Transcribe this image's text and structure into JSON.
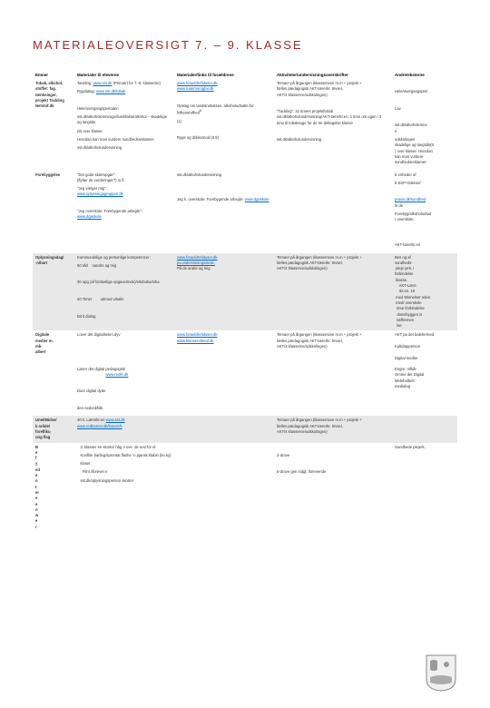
{
  "title": "MATERIALEOVERSIGT 7. – 9. KLASSE",
  "headers": [
    "Emner",
    "Materialer til eleverne",
    "Materialer/links til forældrene",
    "Aktiviteter/undervisningsoverskrifter",
    "Andre/eksterne"
  ],
  "rows": [
    {
      "bg": "white",
      "cells": [
        "Tobak, alkohol,<br>stoffer: fag.<br>tænkninger,<br>projekt Tackling<br>Netstof.dk",
        "<div>Tackling:&nbsp;<span class=link>www.sst.dk</span>&nbsp;(Primært for 7.-9. klasserne)</div><div>Rygdialog:&nbsp;<span class=link>www.sst.dk/tobak</span></div><div>&nbsp;</div><div>Hele/overgangsperioden</div><div>sst.dk/alkoholemneuge/hashfakta/alkohol – skadelige og langtids</div><div>(8) over klasse:</div><div>Hvordan kan man vurdere sundhedsreklamer:</div><div>sst.dk/alkoholundervisning</div>",
        "<div><span class=link>www.foraeldrefiduser.dk</span><br><span class=link>www.naarmorogfar.dk</span></div><div>&nbsp;</div><div>Opslag om landsindsatsen, alkoholudsatte for folkesundhed<sup>8</sup></div><div>(1)</div><div>&nbsp;</div><div>Ryge og drikkemod (8,9)</div>",
        "<div>Temaer på årgangen (klassemove m.m + projekt +<br>fælles pædagogisk AKT-lærerkr. trivsel,<br>AKT/4 klasserne/udskolingen)</div><div>&nbsp;</div><div>&quot;Tackling&quot;: 31 timers projektforløb<br>sst.dk/alkoholundervisning/AKT-lærerkr.en. 1 time om ugen i 3<br>time til tobaksuge for de tre deltagelse klasse</div><div>&nbsp;</div><div>sst.dk/alkoholundervisning</div>",
        "<div>&nbsp;</div><div>Hele/overgangsperi</div><div>&nbsp;</div><div>Lav</div><div>&nbsp;</div><div>sst.dk/alkoholemne<br>e</div><div>udskolingen<br>skadelige og langtids(8<br>) over klasse: Hvordan<br>kan man vurdere<br>sundhedsreklamer:</div>"
      ]
    },
    {
      "bg": "white",
      "cells": [
        "Forebyggelse",
        "<div>&quot;Det gode skæropgør&quot;<br>(flytter de vurderinger?) m.fl.</div><div>&quot;Jeg vælger mig&quot;<br><span class=link>www.oplysningsgruppen.dk</span></div><div>&nbsp;</div><div>&quot;Jeg overskole: Forebygende arbejde&quot;-<br><span class=link>www.dgaskole</span></div>",
        "<div>sst.dk/alkoholundervisning</div><div>&nbsp;</div><div>&nbsp;</div><div>Jeg k. overskole: Forebygende arbejde:&nbsp;<span class=link>www.dgaskole</span></div>",
        "",
        "<div>5 enheder af</div><div>8 SSP-Odense&quot;</div><div>&nbsp;</div><div><span class=link>praxis.dk/sundhed</span><br>le de</div><div>Forebyg/alkoholudsat<br>r overskole:</div><div>&nbsp;</div><div>&nbsp;</div><div>AKT-lærerkr.en</div>"
      ]
    },
    {
      "bg": "gray",
      "cells": [
        "Oplysningsdag/<br>-nihart",
        "<div>Kommundelige og personlige kompetencer:</div><div>50 råd&nbsp;&nbsp;&nbsp;&nbsp;oandre og mig</div><div>&nbsp;</div><div>30 opg (af forskellige opgaverinde)/elmboka/niha</div><div>&nbsp;</div><div>20 Timer &nbsp;&nbsp;&nbsp;&nbsp;&nbsp;&nbsp;&nbsp;udmod Ubalin</div><div>&nbsp;</div><div>Bit it dialog</div>",
        "<span class=link>www.foraeldrefiduser.dk</span><br><span class=link>pv.undervisningsskole.</span><br>På de andre og mig",
        "Temaer på årgangen (klassemove m.m + projekt +<br>fælles pædagogisk AKT-lærerkr. trivsel,<br>AKT/4 klasserne/udskolingen)",
        "Bes og af<br>sundheds-<br>&nbsp;pleje jerk. i<br>forbindelse<br>&nbsp;klasse.<br>&nbsp;&nbsp;&nbsp;&nbsp;AKT-Lære<br>&nbsp;&nbsp;&nbsp;&nbsp;rkr.en. 19<br>&nbsp;med Minnelser oden.<br>&nbsp;med/&nbsp;overskole<br>&nbsp;&nbsp;time iforbindelse<br>&nbsp;&nbsp;dosv/byggen is<br>&nbsp;&nbsp;læffermen<br>&nbsp;&nbsp;lse"
      ]
    },
    {
      "bg": "white",
      "cells": [
        "Digitale<br>medier m.<br>mb-<br>albert",
        "<div>Lover det digitaliteten.dyv</div><div>&nbsp;</div><div>&nbsp;</div><div>&nbsp;</div><div>Lærer det digital pedagogisk<br>&nbsp;&nbsp;&nbsp;&nbsp;&nbsp;&nbsp;&nbsp;&nbsp;&nbsp;&nbsp;&nbsp;&nbsp;&nbsp;&nbsp;&nbsp;&nbsp;&nbsp;&nbsp;&nbsp;&nbsp;&nbsp;&nbsp;&nbsp;&nbsp;&nbsp;&nbsp;&nbsp;<span class=link>www.redkr.dk</span></div><div>&nbsp;</div><div>Duer digital dyde</div><div>&nbsp;</div><div>den nedord/klik</div>",
        "<span class=link>www.foraeldrefiduser.dk</span><br><span class=link>www.kloosendmed.dk</span>",
        "Temaer på årgangen (klassemove m.m + projekt +<br>fælles pædagogisk AKT-lærerkr. trivsel,<br>AKT/4 klasserne/udskolingen)",
        "AKT pa det balefermed<br><br>Kultidøpperson<br><br>Digital medier<br><br>Engre, Vilkår<br>Omme det Digital<br>Metebolbeh<br>medialog"
      ]
    },
    {
      "bg": "gray",
      "cells": [
        "Unet/Midse/<br>k orlide/<br>forefliku<br>ung flag",
        "40 k. Lærerkr.en&nbsp;<span class=link>www.sst.dk</span><br><span class=link>www.redbarnet.dk/kraem/k</span>",
        "",
        "Temaer på årgangen (klassemove m.m + projekt +<br>fælles pædagogisk AKT-lærerkr. trivsel,<br>AKT/4 klasserne/udskolingen)",
        ""
      ]
    },
    {
      "bg": "white",
      "cells": [
        "B<br>e<br>f<br>y<br>ed<br>e<br>n<br>t<br>er<br>e<br>e<br>n<br>w<br>e<br>r",
        "<div>&nbsp;&nbsp;&nbsp;3. klasser en skorter håg 4 ove. de und for el</div><div>&nbsp;&nbsp;&nbsp;Konflite barling/sprontat flashe ½ pjansk&nbsp;klabin (kn.ky)</div><div>&nbsp;&nbsp;&nbsp;kloset</div><div>&nbsp;&nbsp;&nbsp;&nbsp;&nbsp;Flint i/forever e</div><div>&nbsp;&nbsp;&nbsp;sst.dk/oplysningsperson skorter</div>",
        "",
        "<div>&nbsp;</div><div>2-drove</div><div>&nbsp;</div><div>5-drove gen indgl: iforeveride</div>",
        "Sundhede plejerk."
      ]
    }
  ]
}
